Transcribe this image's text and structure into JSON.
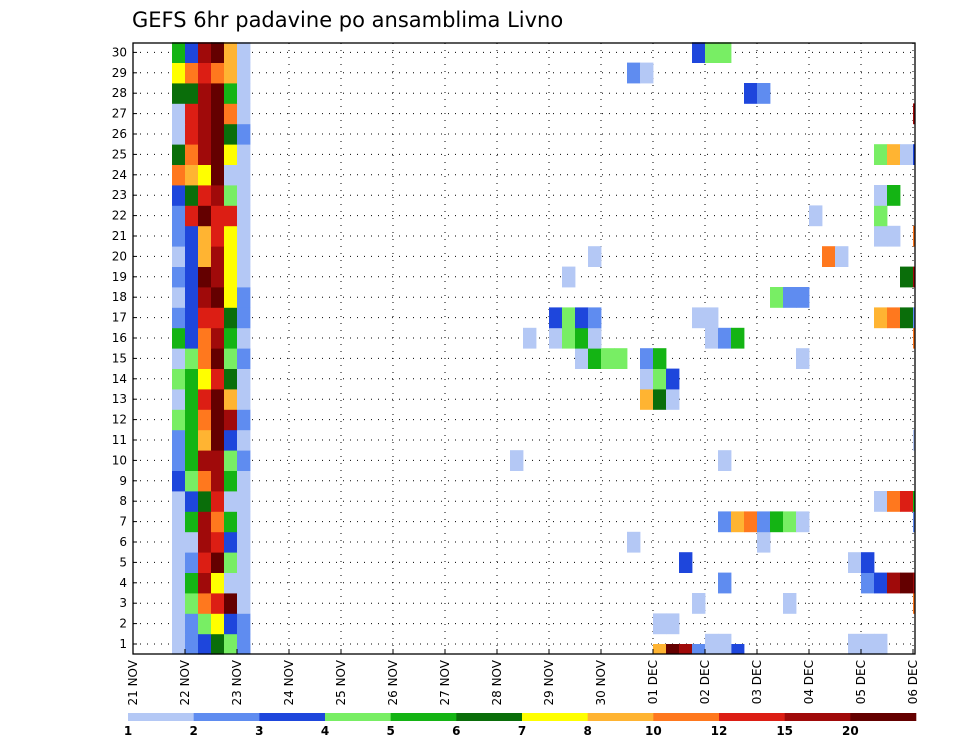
{
  "chart_data": {
    "type": "heatmap",
    "title": "GEFS 6hr padavine po ansamblima Livno",
    "xlabel": "",
    "ylabel": "",
    "x_ticks": [
      "21 NOV",
      "22 NOV",
      "23 NOV",
      "24 NOV",
      "25 NOV",
      "26 NOV",
      "27 NOV",
      "28 NOV",
      "29 NOV",
      "30 NOV",
      "01 DEC",
      "02 DEC",
      "03 DEC",
      "04 DEC",
      "05 DEC",
      "06 DEC"
    ],
    "y_ticks": [
      "1",
      "2",
      "3",
      "4",
      "5",
      "6",
      "7",
      "8",
      "9",
      "10",
      "11",
      "12",
      "13",
      "14",
      "15",
      "16",
      "17",
      "18",
      "19",
      "20",
      "21",
      "22",
      "23",
      "24",
      "25",
      "26",
      "27",
      "28",
      "29",
      "30"
    ],
    "grid": true,
    "legend": {
      "placement": "bottom",
      "labels": [
        "1",
        "2",
        "3",
        "4",
        "5",
        "6",
        "7",
        "8",
        "10",
        "12",
        "15",
        "20"
      ],
      "colors": [
        "#b4c8f5",
        "#5f8cf0",
        "#1e46dc",
        "#78ee64",
        "#14b414",
        "#0a6e0a",
        "#ffff00",
        "#ffb432",
        "#ff781e",
        "#dc1e14",
        "#a00a0a",
        "#640000"
      ]
    },
    "step_per_day": 4,
    "cells": [
      [
        0,
        3,
        4
      ],
      [
        0,
        4,
        5
      ],
      [
        0,
        5,
        9
      ],
      [
        0,
        6,
        12
      ],
      [
        0,
        7,
        8
      ],
      [
        0,
        8,
        2
      ],
      [
        1,
        3,
        1
      ],
      [
        1,
        4,
        2
      ],
      [
        1,
        5,
        3
      ],
      [
        1,
        6,
        6
      ],
      [
        1,
        7,
        4
      ],
      [
        1,
        8,
        2
      ],
      [
        2,
        3,
        1
      ],
      [
        2,
        4,
        2
      ],
      [
        2,
        5,
        4
      ],
      [
        2,
        6,
        7
      ],
      [
        2,
        7,
        3
      ],
      [
        2,
        8,
        2
      ],
      [
        3,
        3,
        1
      ],
      [
        3,
        4,
        4
      ],
      [
        3,
        5,
        9
      ],
      [
        3,
        6,
        10
      ],
      [
        3,
        7,
        12
      ],
      [
        3,
        8,
        1
      ],
      [
        4,
        3,
        1
      ],
      [
        4,
        4,
        5
      ],
      [
        4,
        5,
        11
      ],
      [
        4,
        6,
        7
      ],
      [
        4,
        7,
        1
      ],
      [
        4,
        8,
        1
      ],
      [
        5,
        3,
        1
      ],
      [
        5,
        4,
        2
      ],
      [
        5,
        5,
        10
      ],
      [
        5,
        6,
        12
      ],
      [
        5,
        7,
        4
      ],
      [
        5,
        8,
        1
      ],
      [
        6,
        3,
        1
      ],
      [
        6,
        4,
        1
      ],
      [
        6,
        5,
        11
      ],
      [
        6,
        6,
        10
      ],
      [
        6,
        7,
        3
      ],
      [
        6,
        8,
        1
      ],
      [
        7,
        3,
        1
      ],
      [
        7,
        4,
        5
      ],
      [
        7,
        5,
        11
      ],
      [
        7,
        6,
        9
      ],
      [
        7,
        7,
        5
      ],
      [
        7,
        8,
        1
      ],
      [
        8,
        3,
        1
      ],
      [
        8,
        4,
        3
      ],
      [
        8,
        5,
        6
      ],
      [
        8,
        6,
        10
      ],
      [
        8,
        7,
        1
      ],
      [
        8,
        8,
        1
      ],
      [
        9,
        3,
        3
      ],
      [
        9,
        4,
        4
      ],
      [
        9,
        5,
        9
      ],
      [
        9,
        6,
        11
      ],
      [
        9,
        7,
        5
      ],
      [
        9,
        8,
        1
      ],
      [
        10,
        3,
        2
      ],
      [
        10,
        4,
        5
      ],
      [
        10,
        5,
        11
      ],
      [
        10,
        6,
        11
      ],
      [
        10,
        7,
        4
      ],
      [
        10,
        8,
        2
      ],
      [
        11,
        3,
        2
      ],
      [
        11,
        4,
        5
      ],
      [
        11,
        5,
        8
      ],
      [
        11,
        6,
        12
      ],
      [
        11,
        7,
        3
      ],
      [
        11,
        8,
        1
      ],
      [
        12,
        3,
        4
      ],
      [
        12,
        4,
        5
      ],
      [
        12,
        5,
        9
      ],
      [
        12,
        6,
        12
      ],
      [
        12,
        7,
        11
      ],
      [
        12,
        8,
        2
      ],
      [
        13,
        3,
        1
      ],
      [
        13,
        4,
        5
      ],
      [
        13,
        5,
        10
      ],
      [
        13,
        6,
        12
      ],
      [
        13,
        7,
        8
      ],
      [
        13,
        8,
        1
      ],
      [
        14,
        3,
        4
      ],
      [
        14,
        4,
        5
      ],
      [
        14,
        5,
        7
      ],
      [
        14,
        6,
        10
      ],
      [
        14,
        7,
        6
      ],
      [
        14,
        8,
        1
      ],
      [
        15,
        3,
        1
      ],
      [
        15,
        4,
        4
      ],
      [
        15,
        5,
        9
      ],
      [
        15,
        6,
        12
      ],
      [
        15,
        7,
        4
      ],
      [
        15,
        8,
        2
      ],
      [
        16,
        3,
        5
      ],
      [
        16,
        4,
        3
      ],
      [
        16,
        5,
        9
      ],
      [
        16,
        6,
        11
      ],
      [
        16,
        7,
        5
      ],
      [
        16,
        8,
        1
      ],
      [
        17,
        3,
        2
      ],
      [
        17,
        4,
        3
      ],
      [
        17,
        5,
        10
      ],
      [
        17,
        6,
        10
      ],
      [
        17,
        7,
        6
      ],
      [
        17,
        8,
        2
      ],
      [
        18,
        3,
        1
      ],
      [
        18,
        4,
        3
      ],
      [
        18,
        5,
        11
      ],
      [
        18,
        6,
        12
      ],
      [
        18,
        7,
        7
      ],
      [
        18,
        8,
        2
      ],
      [
        19,
        3,
        2
      ],
      [
        19,
        4,
        3
      ],
      [
        19,
        5,
        12
      ],
      [
        19,
        6,
        11
      ],
      [
        19,
        7,
        7
      ],
      [
        19,
        8,
        1
      ],
      [
        20,
        3,
        1
      ],
      [
        20,
        4,
        3
      ],
      [
        20,
        5,
        8
      ],
      [
        20,
        6,
        11
      ],
      [
        20,
        7,
        7
      ],
      [
        20,
        8,
        1
      ],
      [
        21,
        3,
        2
      ],
      [
        21,
        4,
        3
      ],
      [
        21,
        5,
        8
      ],
      [
        21,
        6,
        10
      ],
      [
        21,
        7,
        7
      ],
      [
        21,
        8,
        1
      ],
      [
        22,
        3,
        2
      ],
      [
        22,
        4,
        10
      ],
      [
        22,
        5,
        12
      ],
      [
        22,
        6,
        10
      ],
      [
        22,
        7,
        10
      ],
      [
        22,
        8,
        1
      ],
      [
        23,
        3,
        3
      ],
      [
        23,
        4,
        6
      ],
      [
        23,
        5,
        10
      ],
      [
        23,
        6,
        11
      ],
      [
        23,
        7,
        4
      ],
      [
        23,
        8,
        1
      ],
      [
        24,
        3,
        9
      ],
      [
        24,
        4,
        8
      ],
      [
        24,
        5,
        7
      ],
      [
        24,
        6,
        12
      ],
      [
        24,
        7,
        1
      ],
      [
        24,
        8,
        1
      ],
      [
        25,
        3,
        6
      ],
      [
        25,
        4,
        9
      ],
      [
        25,
        5,
        11
      ],
      [
        25,
        6,
        12
      ],
      [
        25,
        7,
        7
      ],
      [
        25,
        8,
        1
      ],
      [
        26,
        3,
        1
      ],
      [
        26,
        4,
        10
      ],
      [
        26,
        5,
        11
      ],
      [
        26,
        6,
        12
      ],
      [
        26,
        7,
        6
      ],
      [
        26,
        8,
        2
      ],
      [
        27,
        3,
        1
      ],
      [
        27,
        4,
        10
      ],
      [
        27,
        5,
        11
      ],
      [
        27,
        6,
        12
      ],
      [
        27,
        7,
        9
      ],
      [
        27,
        8,
        1
      ],
      [
        28,
        3,
        6
      ],
      [
        28,
        4,
        6
      ],
      [
        28,
        5,
        11
      ],
      [
        28,
        6,
        12
      ],
      [
        28,
        7,
        5
      ],
      [
        28,
        8,
        1
      ],
      [
        29,
        3,
        7
      ],
      [
        29,
        4,
        9
      ],
      [
        29,
        5,
        10
      ],
      [
        29,
        6,
        9
      ],
      [
        29,
        7,
        8
      ],
      [
        29,
        8,
        1
      ],
      [
        30,
        3,
        5
      ],
      [
        30,
        4,
        3
      ],
      [
        30,
        5,
        11
      ],
      [
        30,
        6,
        12
      ],
      [
        30,
        7,
        8
      ],
      [
        30,
        8,
        1
      ],
      [
        0,
        40,
        8
      ],
      [
        0,
        41,
        12
      ],
      [
        0,
        42,
        11
      ],
      [
        0,
        43,
        2
      ],
      [
        0,
        44,
        1
      ],
      [
        0,
        45,
        2
      ],
      [
        0,
        46,
        3
      ],
      [
        0,
        57,
        1
      ],
      [
        1,
        44,
        1
      ],
      [
        1,
        45,
        1
      ],
      [
        1,
        55,
        1
      ],
      [
        1,
        56,
        1
      ],
      [
        1,
        57,
        1
      ],
      [
        2,
        40,
        1
      ],
      [
        2,
        41,
        1
      ],
      [
        3,
        43,
        1
      ],
      [
        3,
        50,
        1
      ],
      [
        3,
        60,
        9
      ],
      [
        4,
        45,
        2
      ],
      [
        4,
        56,
        2
      ],
      [
        4,
        57,
        3
      ],
      [
        4,
        58,
        11
      ],
      [
        4,
        59,
        12
      ],
      [
        4,
        60,
        11
      ],
      [
        4,
        61,
        10
      ],
      [
        4,
        62,
        12
      ],
      [
        4,
        63,
        10
      ],
      [
        4,
        64,
        7
      ],
      [
        4,
        65,
        1
      ],
      [
        4,
        66,
        1
      ],
      [
        5,
        42,
        3
      ],
      [
        5,
        55,
        1
      ],
      [
        5,
        56,
        3
      ],
      [
        6,
        38,
        1
      ],
      [
        6,
        48,
        1
      ],
      [
        6,
        62,
        4
      ],
      [
        6,
        63,
        2
      ],
      [
        6,
        64,
        1
      ],
      [
        6,
        67,
        1
      ],
      [
        6,
        68,
        2
      ],
      [
        6,
        69,
        1
      ],
      [
        7,
        45,
        2
      ],
      [
        7,
        46,
        8
      ],
      [
        7,
        47,
        9
      ],
      [
        7,
        48,
        2
      ],
      [
        7,
        49,
        5
      ],
      [
        7,
        50,
        4
      ],
      [
        7,
        51,
        1
      ],
      [
        7,
        60,
        2
      ],
      [
        8,
        57,
        1
      ],
      [
        8,
        58,
        9
      ],
      [
        8,
        59,
        10
      ],
      [
        8,
        60,
        5
      ],
      [
        9,
        63,
        1
      ],
      [
        9,
        64,
        2
      ],
      [
        9,
        65,
        9
      ],
      [
        9,
        66,
        11
      ],
      [
        9,
        67,
        11
      ],
      [
        9,
        68,
        11
      ],
      [
        9,
        69,
        6
      ],
      [
        10,
        29,
        1
      ],
      [
        10,
        45,
        1
      ],
      [
        10,
        62,
        4
      ],
      [
        10,
        63,
        5
      ],
      [
        10,
        64,
        7
      ],
      [
        10,
        65,
        6
      ],
      [
        10,
        66,
        5
      ],
      [
        10,
        68,
        1
      ],
      [
        10,
        69,
        7
      ],
      [
        11,
        60,
        1
      ],
      [
        11,
        61,
        3
      ],
      [
        13,
        39,
        8
      ],
      [
        13,
        40,
        6
      ],
      [
        13,
        41,
        1
      ],
      [
        13,
        61,
        1
      ],
      [
        13,
        62,
        1
      ],
      [
        13,
        63,
        1
      ],
      [
        13,
        64,
        4
      ],
      [
        13,
        65,
        4
      ],
      [
        13,
        66,
        1
      ],
      [
        13,
        67,
        1
      ],
      [
        13,
        68,
        1
      ],
      [
        13,
        69,
        11
      ],
      [
        13,
        70,
        4
      ],
      [
        14,
        39,
        1
      ],
      [
        14,
        40,
        4
      ],
      [
        14,
        41,
        3
      ],
      [
        15,
        34,
        1
      ],
      [
        15,
        35,
        5
      ],
      [
        15,
        36,
        4
      ],
      [
        15,
        37,
        4
      ],
      [
        15,
        39,
        2
      ],
      [
        15,
        40,
        5
      ],
      [
        15,
        51,
        1
      ],
      [
        16,
        30,
        1
      ],
      [
        16,
        32,
        1
      ],
      [
        16,
        33,
        4
      ],
      [
        16,
        34,
        5
      ],
      [
        16,
        35,
        1
      ],
      [
        16,
        44,
        1
      ],
      [
        16,
        45,
        2
      ],
      [
        16,
        46,
        5
      ],
      [
        16,
        60,
        9
      ],
      [
        16,
        61,
        8
      ],
      [
        16,
        62,
        5
      ],
      [
        16,
        63,
        1
      ],
      [
        17,
        32,
        3
      ],
      [
        17,
        33,
        4
      ],
      [
        17,
        34,
        3
      ],
      [
        17,
        35,
        2
      ],
      [
        17,
        43,
        1
      ],
      [
        17,
        44,
        1
      ],
      [
        17,
        57,
        8
      ],
      [
        17,
        58,
        9
      ],
      [
        17,
        59,
        6
      ],
      [
        17,
        60,
        2
      ],
      [
        17,
        61,
        3
      ],
      [
        17,
        62,
        3
      ],
      [
        17,
        63,
        2
      ],
      [
        17,
        64,
        3
      ],
      [
        17,
        65,
        9
      ],
      [
        17,
        66,
        9
      ],
      [
        17,
        67,
        9
      ],
      [
        18,
        49,
        4
      ],
      [
        18,
        50,
        2
      ],
      [
        18,
        51,
        2
      ],
      [
        18,
        65,
        2
      ],
      [
        18,
        66,
        10
      ],
      [
        18,
        67,
        11
      ],
      [
        18,
        68,
        12
      ],
      [
        18,
        69,
        7
      ],
      [
        18,
        70,
        8
      ],
      [
        19,
        33,
        1
      ],
      [
        19,
        59,
        6
      ],
      [
        19,
        60,
        11
      ],
      [
        19,
        61,
        10
      ],
      [
        19,
        62,
        4
      ],
      [
        20,
        35,
        1
      ],
      [
        20,
        53,
        9
      ],
      [
        20,
        54,
        1
      ],
      [
        20,
        61,
        10
      ],
      [
        20,
        62,
        4
      ],
      [
        20,
        63,
        1
      ],
      [
        21,
        57,
        1
      ],
      [
        21,
        58,
        1
      ],
      [
        21,
        60,
        9
      ],
      [
        21,
        61,
        1
      ],
      [
        21,
        62,
        1
      ],
      [
        22,
        52,
        1
      ],
      [
        22,
        57,
        4
      ],
      [
        23,
        57,
        1
      ],
      [
        23,
        58,
        5
      ],
      [
        25,
        57,
        4
      ],
      [
        25,
        58,
        8
      ],
      [
        25,
        59,
        1
      ],
      [
        25,
        60,
        3
      ],
      [
        25,
        61,
        1
      ],
      [
        25,
        62,
        4
      ],
      [
        25,
        64,
        1
      ],
      [
        25,
        65,
        3
      ],
      [
        25,
        66,
        3
      ],
      [
        26,
        65,
        3
      ],
      [
        26,
        66,
        8
      ],
      [
        26,
        67,
        8
      ],
      [
        26,
        68,
        5
      ],
      [
        26,
        69,
        2
      ],
      [
        26,
        70,
        2
      ],
      [
        27,
        60,
        11
      ],
      [
        27,
        61,
        12
      ],
      [
        28,
        47,
        3
      ],
      [
        28,
        48,
        2
      ],
      [
        29,
        38,
        2
      ],
      [
        29,
        39,
        1
      ],
      [
        30,
        43,
        3
      ],
      [
        30,
        44,
        4
      ],
      [
        30,
        45,
        4
      ],
      [
        30,
        70,
        10
      ]
    ]
  }
}
